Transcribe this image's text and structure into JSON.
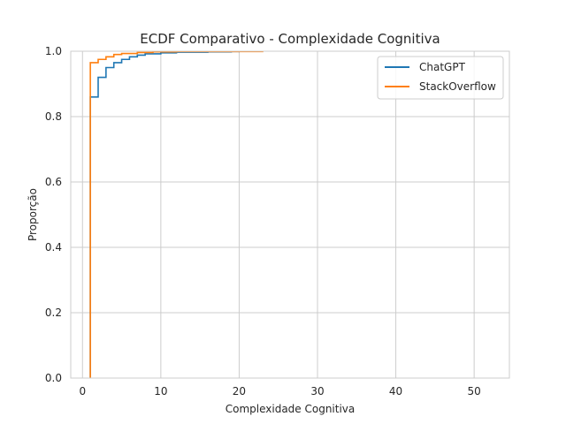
{
  "chart_data": {
    "type": "line",
    "step": true,
    "title": "ECDF Comparativo - Complexidade Cognitiva",
    "xlabel": "Complexidade Cognitiva",
    "ylabel": "Proporção",
    "xlim": [
      -1.5,
      54.5
    ],
    "ylim": [
      0,
      1
    ],
    "xticks": [
      0,
      10,
      20,
      30,
      40,
      50
    ],
    "yticks": [
      0.0,
      0.2,
      0.4,
      0.6,
      0.8,
      1.0
    ],
    "xtick_labels": [
      "0",
      "10",
      "20",
      "30",
      "40",
      "50"
    ],
    "ytick_labels": [
      "0.0",
      "0.2",
      "0.4",
      "0.6",
      "0.8",
      "1.0"
    ],
    "grid": true,
    "legend_position": "top-right",
    "series": [
      {
        "name": "ChatGPT",
        "color": "#1f77b4",
        "x": [
          1,
          2,
          3,
          4,
          5,
          6,
          7,
          8,
          10,
          12,
          16,
          19,
          20
        ],
        "y": [
          0.86,
          0.92,
          0.95,
          0.965,
          0.975,
          0.983,
          0.988,
          0.992,
          0.995,
          0.997,
          0.998,
          0.999,
          1.0
        ]
      },
      {
        "name": "StackOverflow",
        "color": "#ff7f0e",
        "x": [
          1,
          2,
          3,
          4,
          5,
          7,
          9,
          12,
          23
        ],
        "y": [
          0.965,
          0.975,
          0.983,
          0.99,
          0.993,
          0.996,
          0.998,
          0.999,
          1.0
        ]
      }
    ]
  }
}
